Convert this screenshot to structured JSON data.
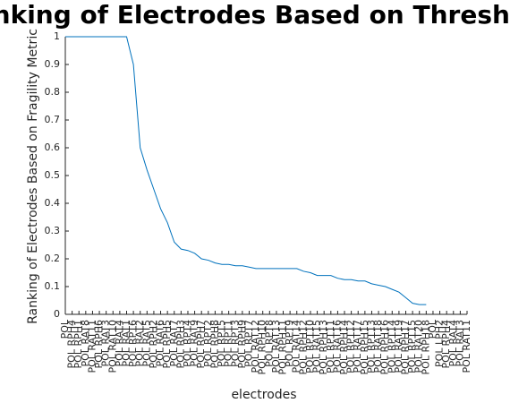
{
  "chart_data": {
    "type": "line",
    "title": "Ranking of Electrodes Based on Threshold",
    "x_label": "electrodes",
    "y_label": "Ranking of Electrodes Based on Fragility Metric",
    "categories": [
      "POL",
      "POL RPH4",
      "POL RPH1",
      "POL RAT8",
      "POL RAT11",
      "POL RPH6",
      "POL RAT3",
      "POL RAT10",
      "POL RAT4",
      "POL RAT1",
      "POL RPT6",
      "POL RAT2",
      "POL RAT5",
      "POL RPH2",
      "POL RAT6",
      "POL RPH5",
      "POL RAT7",
      "POL RPH3",
      "POL RPT4",
      "POL RAT9",
      "POL RPH7",
      "POL RPT2",
      "POL RPH8",
      "POL RPT5",
      "POL RPT1",
      "POL RPT3",
      "POL RPH9",
      "POL RPT7",
      "POL RAT12",
      "POL RPH10",
      "POL RPT8",
      "POL RAT13",
      "POL RPH11",
      "POL RPT9",
      "POL RAT14",
      "POL RPH12",
      "POL RPT10",
      "POL RAT15",
      "POL RPH13",
      "POL RPT11",
      "POL RAT16",
      "POL RPH14",
      "POL RPT12",
      "POL RAT17",
      "POL RPH15",
      "POL RPT13",
      "POL RAT18",
      "POL RPH16",
      "POL RPT14",
      "POL RAT19",
      "POL RPH17",
      "POL RPT15",
      "POL RAT20",
      "POL RPH18",
      "POL",
      "POL LPH2",
      "POL RPH4",
      "POL RAT4",
      "POL RAT3",
      "POL RAT11"
    ],
    "series": [
      {
        "name": "ranking",
        "color": "#0072bd",
        "values": [
          1,
          1,
          1,
          1,
          1,
          1,
          1,
          1,
          1,
          1,
          0.9,
          0.6,
          0.52,
          0.45,
          0.38,
          0.33,
          0.26,
          0.235,
          0.23,
          0.22,
          0.2,
          0.195,
          0.185,
          0.18,
          0.18,
          0.175,
          0.175,
          0.17,
          0.165,
          0.165,
          0.165,
          0.165,
          0.165,
          0.165,
          0.165,
          0.155,
          0.15,
          0.14,
          0.14,
          0.14,
          0.13,
          0.125,
          0.125,
          0.12,
          0.12,
          0.11,
          0.105,
          0.1,
          0.09,
          0.08,
          0.06,
          0.04,
          0.035,
          0.035,
          null,
          null,
          null,
          null,
          null,
          null
        ]
      }
    ],
    "ylim": [
      0,
      1
    ],
    "yticks": [
      0,
      {
        "value": 0.1,
        "label": "0.1"
      },
      {
        "value": 0.2,
        "label": "0.2"
      },
      {
        "value": 0.3,
        "label": "0.3"
      },
      {
        "value": 0.4,
        "label": "0.4"
      },
      {
        "value": 0.5,
        "label": "0.5"
      },
      {
        "value": 0.6,
        "label": "0.6"
      },
      {
        "value": 0.7,
        "label": "0.7"
      },
      {
        "value": 0.8,
        "label": "0.8"
      },
      {
        "value": 0.9,
        "label": "0.9"
      },
      1
    ],
    "grid": false
  }
}
